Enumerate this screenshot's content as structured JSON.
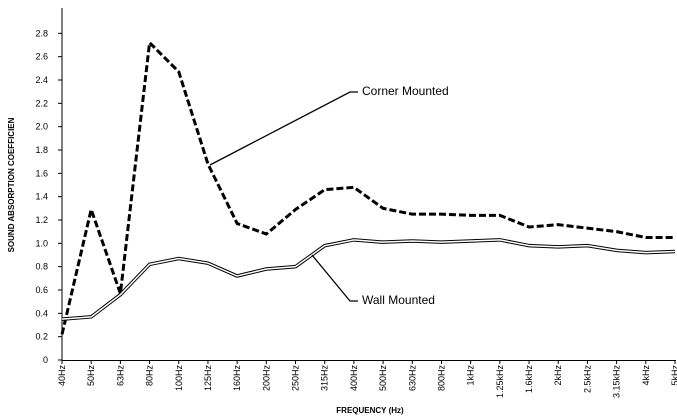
{
  "chart_data": {
    "type": "line",
    "x_label": "FREQUENCY (Hz)",
    "y_label": "SOUND ABSORPTION COEFFICIEN",
    "categories": [
      "40Hz",
      "50Hz",
      "63Hz",
      "80Hz",
      "100Hz",
      "125Hz",
      "160Hz",
      "200Hz",
      "250Hz",
      "315Hz",
      "400Hz",
      "500Hz",
      "630Hz",
      "800Hz",
      "1kHz",
      "1.25kHz",
      "1.6kHz",
      "2kHz",
      "2.5kHz",
      "3.15kHz",
      "4kHz",
      "5kHz"
    ],
    "series": [
      {
        "name": "Corner Mounted",
        "color": "#000000",
        "style": "dashed",
        "values": [
          0.22,
          1.29,
          0.57,
          2.72,
          2.47,
          1.68,
          1.17,
          1.08,
          1.29,
          1.46,
          1.48,
          1.3,
          1.25,
          1.25,
          1.24,
          1.24,
          1.14,
          1.16,
          1.13,
          1.1,
          1.05,
          1.05
        ]
      },
      {
        "name": "Wall Mounted",
        "color": "#000000",
        "style": "double",
        "values": [
          0.35,
          0.37,
          0.56,
          0.82,
          0.87,
          0.83,
          0.72,
          0.78,
          0.8,
          0.98,
          1.03,
          1.01,
          1.02,
          1.01,
          1.02,
          1.03,
          0.98,
          0.97,
          0.98,
          0.94,
          0.92,
          0.93
        ]
      }
    ],
    "ylim": [
      0,
      3
    ],
    "yticks": [
      0,
      0.2,
      0.4,
      0.6,
      0.8,
      {
        "value": 1,
        "label": "1.0"
      },
      1.2,
      1.4,
      1.6,
      1.8,
      {
        "value": 2,
        "label": "2.0"
      },
      2.2,
      2.4,
      2.6,
      2.8
    ],
    "grid": false
  }
}
